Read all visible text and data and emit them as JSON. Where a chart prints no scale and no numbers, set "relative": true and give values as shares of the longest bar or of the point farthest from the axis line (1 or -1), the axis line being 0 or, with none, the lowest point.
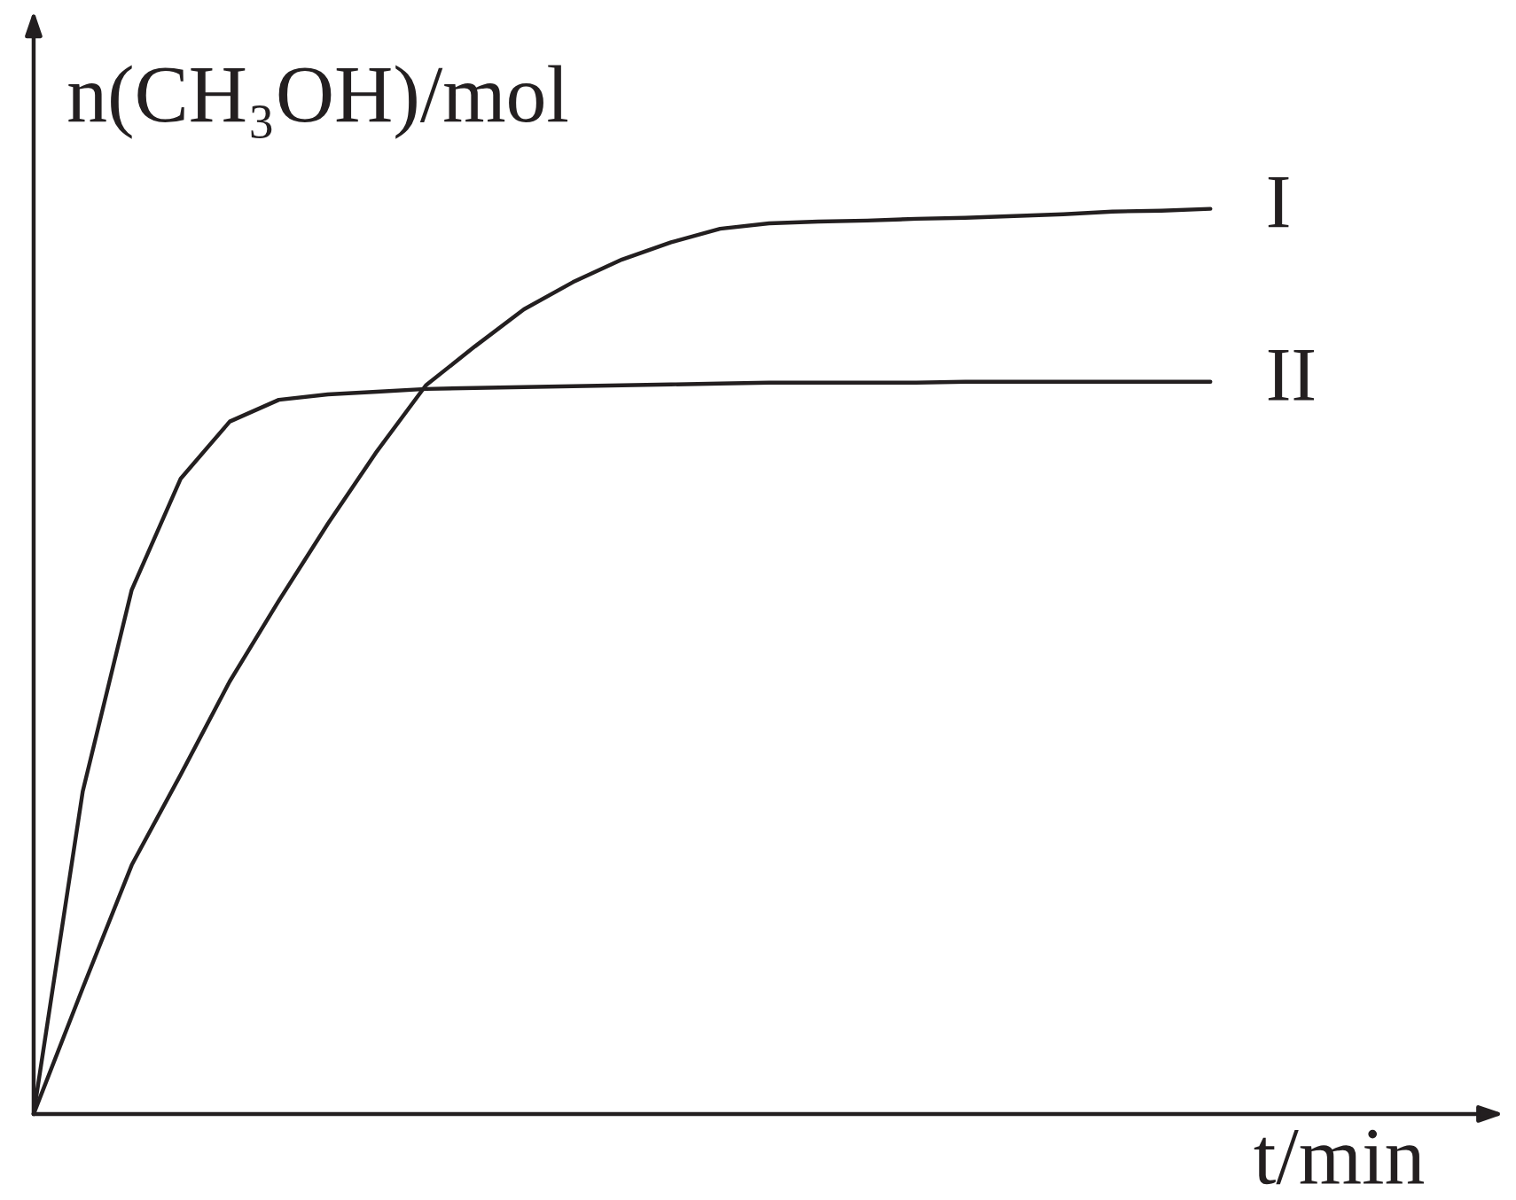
{
  "chart_data": {
    "type": "line",
    "relative": true,
    "xlabel": "t/min",
    "ylabel": "n(CH₃OH)/mol",
    "legend": false,
    "marker": "none",
    "line_style": "solid",
    "categories": [
      null,
      null,
      null,
      null,
      null,
      null,
      null,
      null,
      null,
      null,
      null,
      null,
      null,
      null,
      null,
      null,
      null,
      null,
      null,
      null,
      null,
      null,
      null,
      null,
      null
    ],
    "series": [
      {
        "name": "I",
        "color": "#231f20",
        "values": [
          0,
          0.139,
          0.275,
          0.375,
          0.478,
          0.567,
          0.652,
          0.732,
          0.805,
          0.848,
          0.889,
          0.919,
          0.944,
          0.963,
          0.978,
          0.984,
          0.986,
          0.987,
          0.989,
          0.99,
          0.992,
          0.994,
          0.997,
          0.998,
          1.0
        ]
      },
      {
        "name": "II",
        "color": "#231f20",
        "values": [
          0,
          0.356,
          0.579,
          0.702,
          0.765,
          0.789,
          0.795,
          0.798,
          0.801,
          0.802,
          0.803,
          0.804,
          0.805,
          0.806,
          0.807,
          0.808,
          0.808,
          0.808,
          0.808,
          0.809,
          0.809,
          0.809,
          0.809,
          0.809,
          0.809
        ]
      }
    ]
  }
}
